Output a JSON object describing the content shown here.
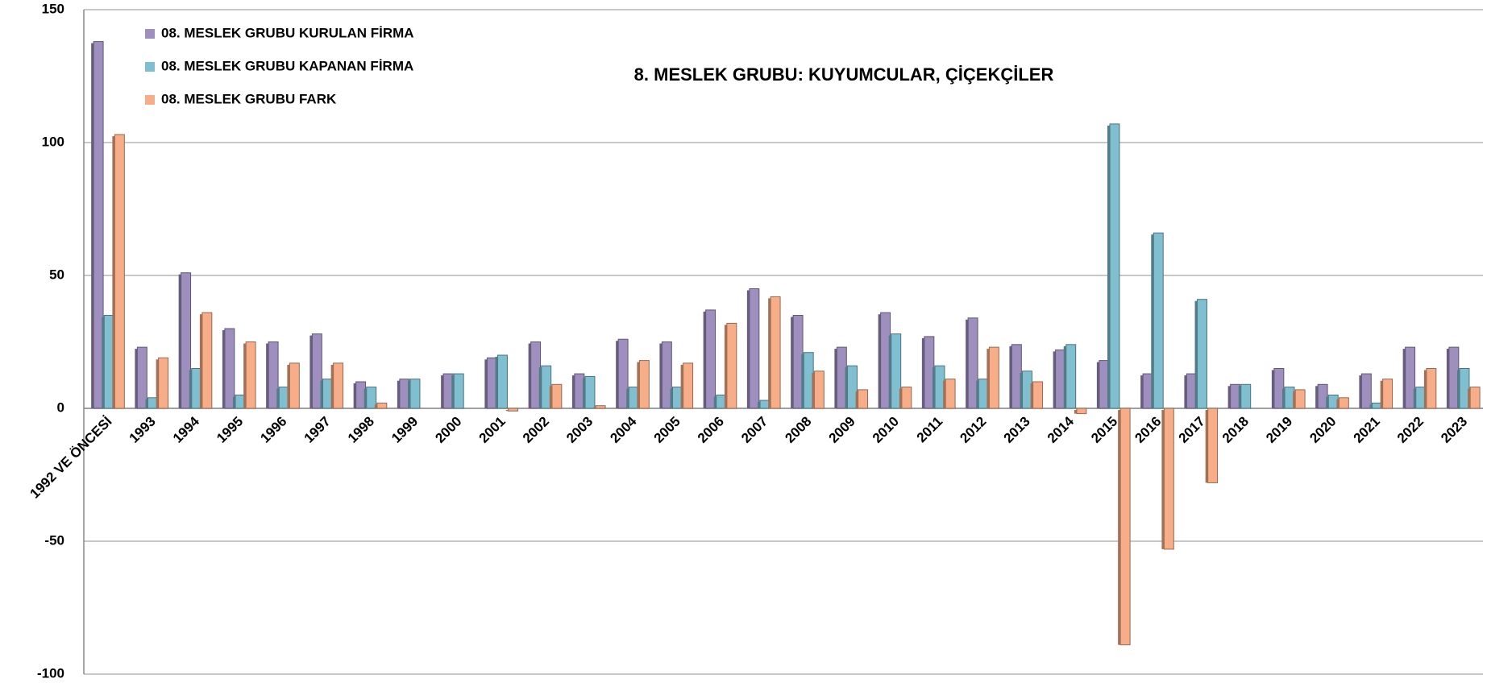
{
  "chart_data": {
    "type": "bar",
    "title": "8. MESLEK GRUBU: KUYUMCULAR, ÇİÇEKÇİLER",
    "categories": [
      "1992 VE ÖNCESİ",
      "1993",
      "1994",
      "1995",
      "1996",
      "1997",
      "1998",
      "1999",
      "2000",
      "2001",
      "2002",
      "2003",
      "2004",
      "2005",
      "2006",
      "2007",
      "2008",
      "2009",
      "2010",
      "2011",
      "2012",
      "2013",
      "2014",
      "2015",
      "2016",
      "2017",
      "2018",
      "2019",
      "2020",
      "2021",
      "2022",
      "2023"
    ],
    "series": [
      {
        "name": "08. MESLEK GRUBU KURULAN FİRMA",
        "color": "#9e8fbf",
        "values": [
          138,
          23,
          51,
          30,
          25,
          28,
          10,
          11,
          13,
          19,
          25,
          13,
          26,
          25,
          37,
          45,
          35,
          23,
          36,
          27,
          34,
          24,
          22,
          18,
          13,
          13,
          9,
          15,
          9,
          13,
          23,
          23
        ]
      },
      {
        "name": "08. MESLEK GRUBU KAPANAN FİRMA",
        "color": "#7fbfd0",
        "values": [
          35,
          4,
          15,
          5,
          8,
          11,
          8,
          11,
          13,
          20,
          16,
          12,
          8,
          8,
          5,
          3,
          21,
          16,
          28,
          16,
          11,
          14,
          24,
          107,
          66,
          41,
          9,
          8,
          5,
          2,
          8,
          15
        ]
      },
      {
        "name": "08. MESLEK GRUBU FARK",
        "color": "#f7ae88",
        "values": [
          103,
          19,
          36,
          25,
          17,
          17,
          2,
          0,
          0,
          -1,
          9,
          1,
          18,
          17,
          32,
          42,
          14,
          7,
          8,
          11,
          23,
          10,
          -2,
          -89,
          -53,
          -28,
          0,
          7,
          4,
          11,
          15,
          8
        ]
      }
    ],
    "ylim": [
      -100,
      150
    ],
    "yticks": [
      -100,
      -50,
      0,
      50,
      100,
      150
    ],
    "grid": true,
    "legend": "top-left"
  }
}
